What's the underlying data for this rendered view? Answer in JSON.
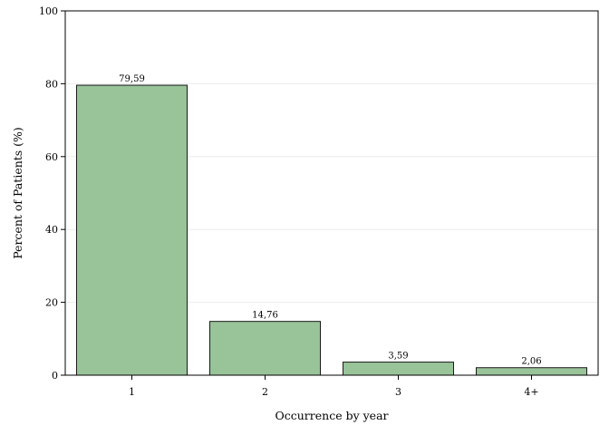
{
  "chart_data": {
    "type": "bar",
    "categories": [
      "1",
      "2",
      "3",
      "4+"
    ],
    "values": [
      79.59,
      14.76,
      3.59,
      2.06
    ],
    "data_labels": [
      "79,59",
      "14,76",
      "3,59",
      "2,06"
    ],
    "title": "",
    "xlabel": "Occurrence by year",
    "ylabel": "Percent of Patients (%)",
    "ylim": [
      0,
      100
    ],
    "yticks": [
      0,
      20,
      40,
      60,
      80,
      100
    ],
    "ytick_labels": [
      "0",
      "20",
      "40",
      "60",
      "80",
      "100"
    ],
    "grid": "horizontal",
    "legend": "none",
    "colors": {
      "bar_fill": "#99c399",
      "bar_stroke": "#1a1a1a",
      "grid": "#ececec",
      "axis": "#000000",
      "background": "#ffffff"
    }
  }
}
